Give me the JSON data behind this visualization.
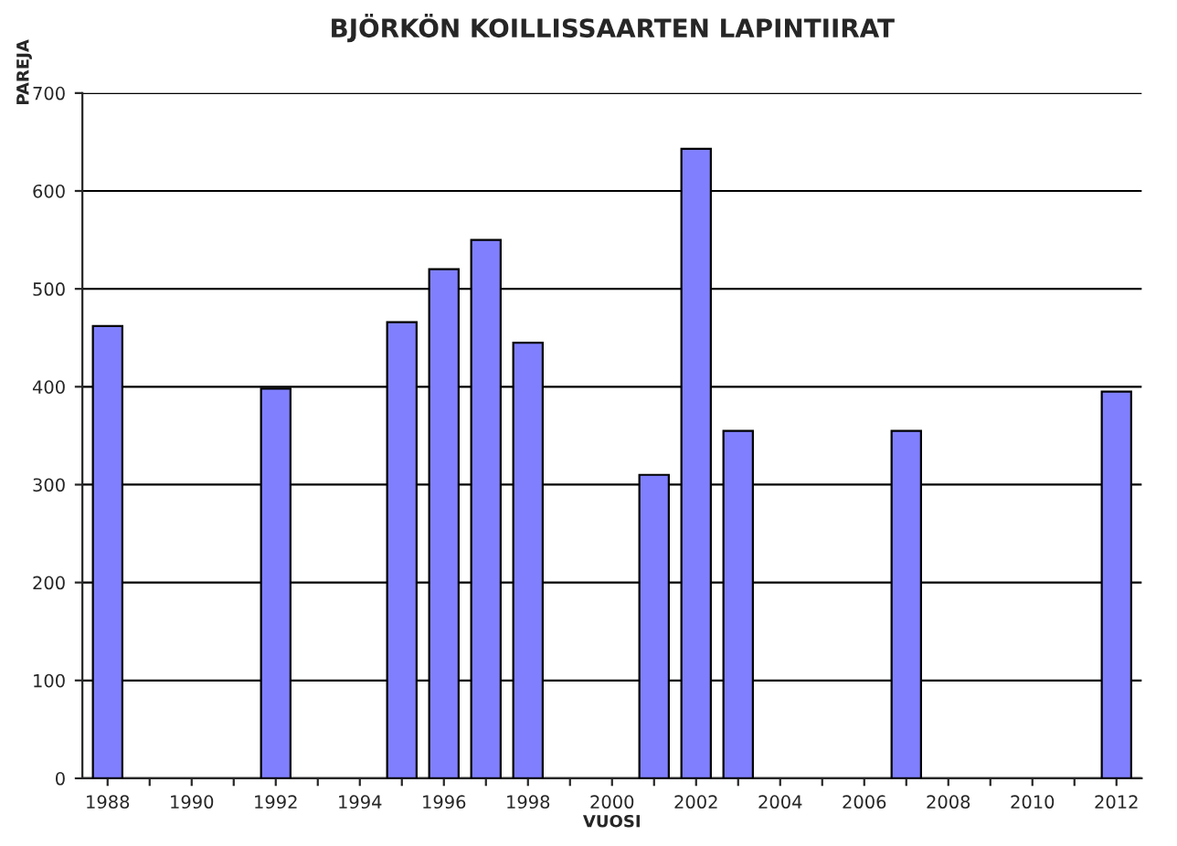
{
  "chart_data": {
    "type": "bar",
    "title": "BJÖRKÖN KOILLISSAARTEN LAPINTIIRAT",
    "xlabel": "VUOSI",
    "ylabel": "PAREJA",
    "categories": [
      "1988",
      null,
      "1990",
      null,
      "1992",
      null,
      "1994",
      null,
      "1996",
      null,
      "1998",
      null,
      "2000",
      null,
      "2002",
      null,
      "2004",
      null,
      "2006",
      null,
      "2008",
      null,
      "2010",
      null,
      "2012"
    ],
    "values": [
      462,
      null,
      null,
      null,
      398,
      null,
      null,
      466,
      520,
      550,
      445,
      null,
      null,
      310,
      643,
      355,
      null,
      null,
      null,
      355,
      null,
      null,
      null,
      null,
      395
    ],
    "color": "#8080ff",
    "ylim": [
      0,
      700
    ],
    "yticks": [
      0,
      100,
      200,
      300,
      400,
      500,
      600,
      700
    ],
    "grid": "y",
    "legend": false
  }
}
